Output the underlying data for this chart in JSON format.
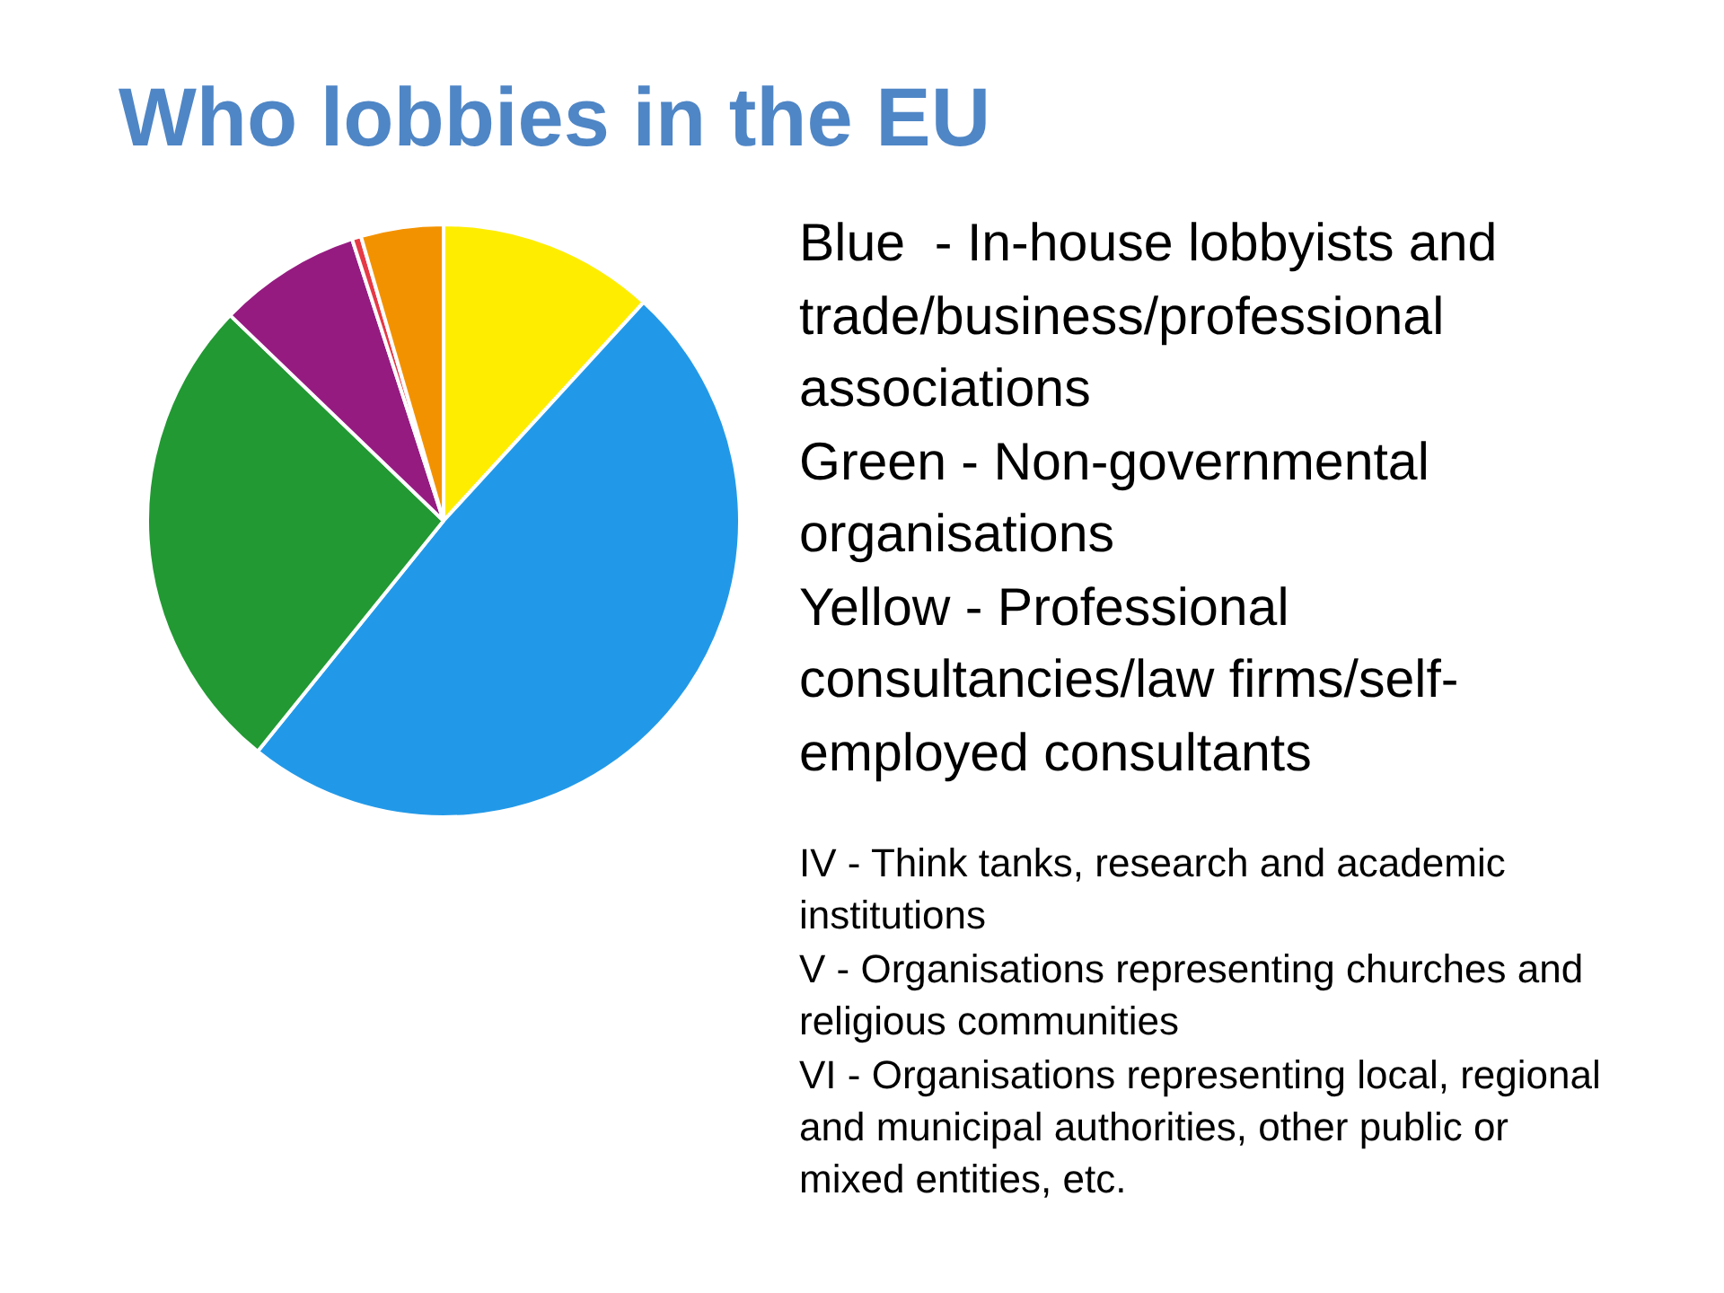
{
  "chart_data": {
    "type": "pie",
    "title": "Who lobbies in the EU",
    "categories": [
      null,
      null,
      null,
      null,
      null,
      null
    ],
    "values": [
      11.8,
      49,
      26.4,
      7.8,
      0.5,
      4.5
    ],
    "colors": [
      "#ffed00",
      "#2299e8",
      "#229933",
      "#951b81",
      "#e63946",
      "#f39200"
    ],
    "annotations": [
      "Blue  - In-house lobbyists and trade/business/professional associations",
      "Green - Non-governmental organisations",
      "Yellow - Professional consultancies/law firms/self-employed consultants",
      "IV - Think tanks, research and academic institutions",
      "V - Organisations representing churches and religious communities",
      "VI - Organisations representing local, regional and municipal authorities, other public or mixed entities, etc."
    ]
  }
}
